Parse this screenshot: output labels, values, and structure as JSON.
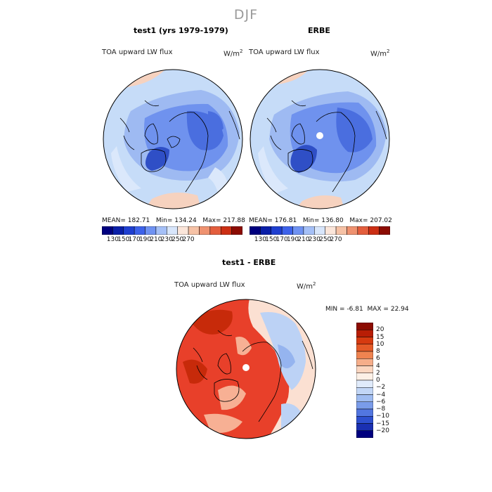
{
  "figure": {
    "suptitle": "DJF"
  },
  "panels": [
    {
      "title": "test1 (yrs 1979-1979)",
      "variable": "TOA upward LW flux",
      "units": "W/m",
      "units_exp": "2",
      "stats": {
        "mean_label": "MEAN=",
        "mean": "182.71",
        "min_label": "Min=",
        "min": "134.24",
        "max_label": "Max=",
        "max": "217.88"
      }
    },
    {
      "title": "ERBE",
      "variable": "TOA upward LW flux",
      "units": "W/m",
      "units_exp": "2",
      "stats": {
        "mean_label": "MEAN=",
        "mean": "176.81",
        "min_label": "Min=",
        "min": "136.80",
        "max_label": "Max=",
        "max": "207.02"
      }
    },
    {
      "title": "test1 - ERBE",
      "variable": "TOA upward LW flux",
      "units": "W/m",
      "units_exp": "2",
      "stats": {
        "min_label": "MIN =",
        "min": "-6.81",
        "max_label": "MAX =",
        "max": "22.94"
      }
    }
  ],
  "colorbar_abs": {
    "colors": [
      "#00007f",
      "#0a1fa8",
      "#1f3fd0",
      "#3d62ea",
      "#6f92f2",
      "#a5c0f7",
      "#d8e6fb",
      "#fbe6da",
      "#f6c2a6",
      "#ef9270",
      "#e45e3d",
      "#cc2f14",
      "#8c0c02"
    ],
    "labels": [
      "130",
      "150",
      "170",
      "190",
      "210",
      "230",
      "250",
      "270"
    ]
  },
  "colorbar_diff": {
    "colors": [
      "#8c0c02",
      "#b81d05",
      "#d63a10",
      "#e45a28",
      "#ef8350",
      "#f6ae8a",
      "#fbd6c0",
      "#fdf0e6",
      "#e0ebfb",
      "#c2d6f6",
      "#9fbcf1",
      "#7a9cea",
      "#5276e0",
      "#2e50cf",
      "#1a30b2",
      "#00007f"
    ],
    "labels": [
      "20",
      "15",
      "10",
      "8",
      "6",
      "4",
      "2",
      "0",
      "−2",
      "−4",
      "−6",
      "−8",
      "−10",
      "−15",
      "−20"
    ]
  },
  "map_colors": {
    "abs_bg": "#c6dcf8",
    "abs_light": "#dbe8fb",
    "abs_mid": "#9ebaf2",
    "abs_blue": "#6f92ee",
    "abs_deep": "#4a6edf",
    "abs_deepest": "#2f4fc6",
    "abs_warm": "#f6d2bf",
    "diff_bg": "#e8402a",
    "diff_deep": "#c72a0a",
    "diff_light": "#f7b094",
    "diff_pale": "#fbe0d2",
    "diff_blue": "#bcd2f5",
    "diff_blue2": "#95b4ef"
  }
}
